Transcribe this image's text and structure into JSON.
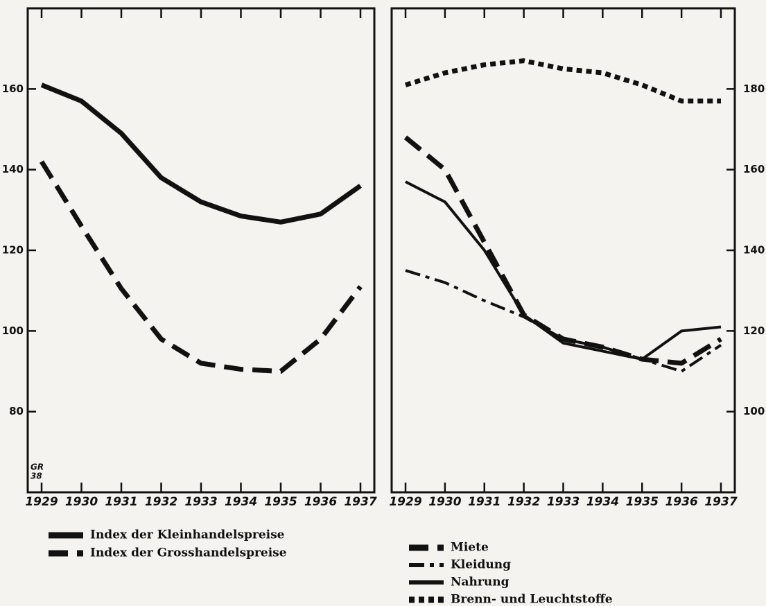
{
  "chart_data": [
    {
      "type": "line",
      "categories": [
        "1929",
        "1930",
        "1931",
        "1932",
        "1933",
        "1934",
        "1935",
        "1936",
        "1937"
      ],
      "series": [
        {
          "name": "Index der Kleinhandelspreise",
          "color": "#111111",
          "line_style": "solid",
          "weight": "thick",
          "values": [
            161,
            157,
            149,
            138,
            132,
            128.5,
            127,
            129,
            136
          ]
        },
        {
          "name": "Index der Grosshandelspreise",
          "color": "#111111",
          "line_style": "dashed",
          "weight": "thick",
          "values": [
            142,
            126,
            110.5,
            98,
            92,
            90.5,
            90,
            98,
            111
          ]
        }
      ],
      "ylim": [
        60,
        180
      ],
      "yticks": [
        80,
        100,
        120,
        140,
        160
      ],
      "y_axis_side": "left",
      "annotation_lines": [
        "GR",
        "38"
      ]
    },
    {
      "type": "line",
      "categories": [
        "1929",
        "1930",
        "1931",
        "1932",
        "1933",
        "1934",
        "1935",
        "1936",
        "1937"
      ],
      "series": [
        {
          "name": "Miete",
          "color": "#111111",
          "line_style": "dashed",
          "weight": "thick",
          "values": [
            168,
            160,
            142,
            124,
            118,
            116,
            113,
            112,
            118
          ]
        },
        {
          "name": "Kleidung",
          "color": "#111111",
          "line_style": "dash-dot",
          "weight": "medium",
          "values": [
            135,
            132,
            127.5,
            123.5,
            118,
            116,
            113,
            110,
            116.5
          ]
        },
        {
          "name": "Nahrung",
          "color": "#111111",
          "line_style": "solid",
          "weight": "medium",
          "values": [
            157,
            152,
            140,
            124,
            117,
            115,
            113,
            120,
            121
          ]
        },
        {
          "name": "Brenn- und Leuchtstoffe",
          "color": "#111111",
          "line_style": "dotted",
          "weight": "thick",
          "values": [
            181,
            184,
            186,
            187,
            185,
            184,
            181,
            177,
            177
          ]
        }
      ],
      "ylim": [
        80,
        200
      ],
      "yticks": [
        100,
        120,
        140,
        160,
        180
      ],
      "y_axis_side": "right"
    }
  ]
}
